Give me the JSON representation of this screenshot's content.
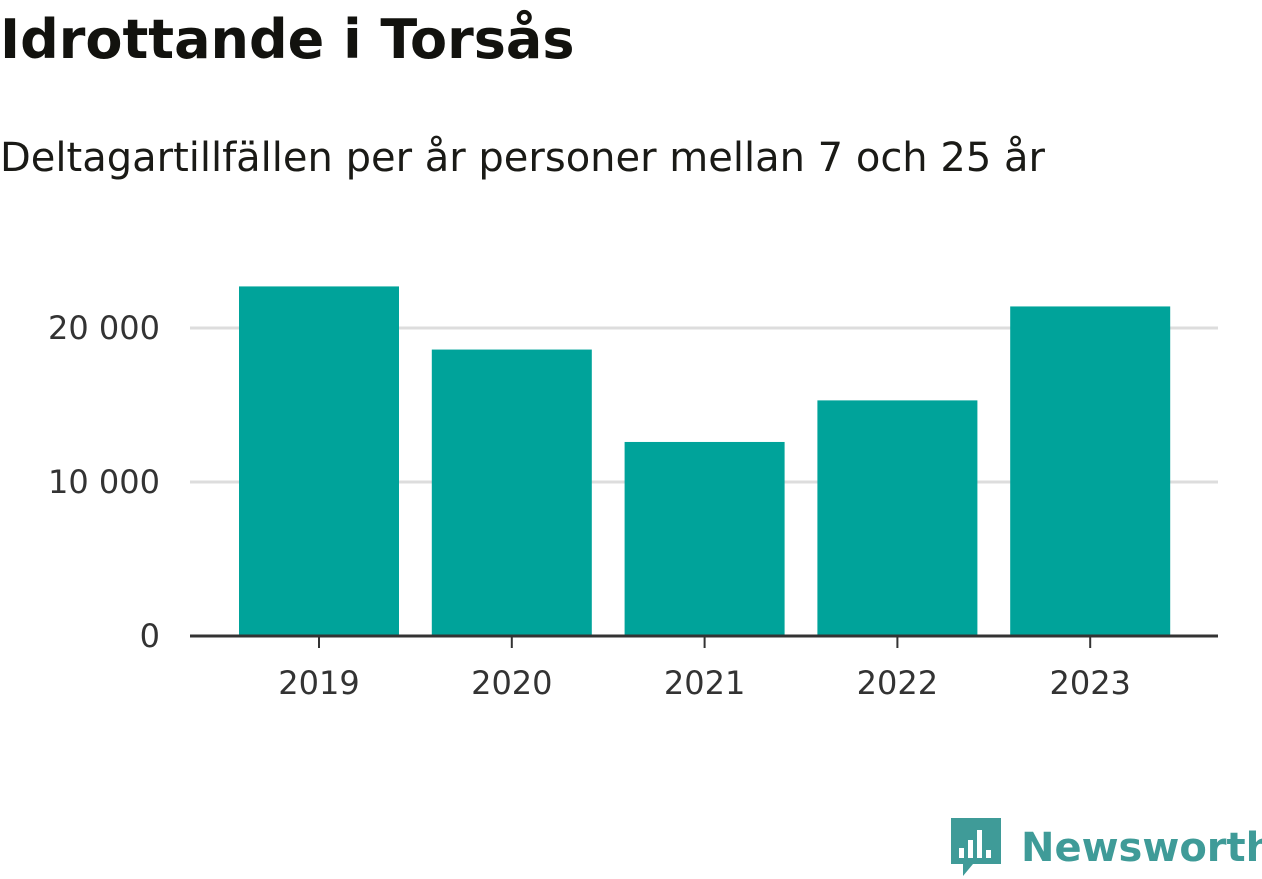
{
  "title": "Idrottande i Torsås",
  "subtitle": "Deltagartillfällen per år personer mellan 7 och 25 år",
  "brand": {
    "name": "Newsworthy",
    "color": "#3f9b98",
    "icon": "bar-chart-speech-bubble-icon"
  },
  "colors": {
    "bar": "#00a39a",
    "grid": "#dddddd",
    "axis": "#333333",
    "text": "#333333"
  },
  "chart_data": {
    "type": "bar",
    "title": "Idrottande i Torsås",
    "subtitle": "Deltagartillfällen per år personer mellan 7 och 25 år",
    "xlabel": "",
    "ylabel": "",
    "categories": [
      "2019",
      "2020",
      "2021",
      "2022",
      "2023"
    ],
    "values": [
      22700,
      18600,
      12600,
      15300,
      21400
    ],
    "ylim": [
      0,
      24000
    ],
    "yticks": [
      0,
      10000,
      20000
    ],
    "ytick_labels": [
      "0",
      "10 000",
      "20 000"
    ],
    "grid": true,
    "legend": false
  }
}
